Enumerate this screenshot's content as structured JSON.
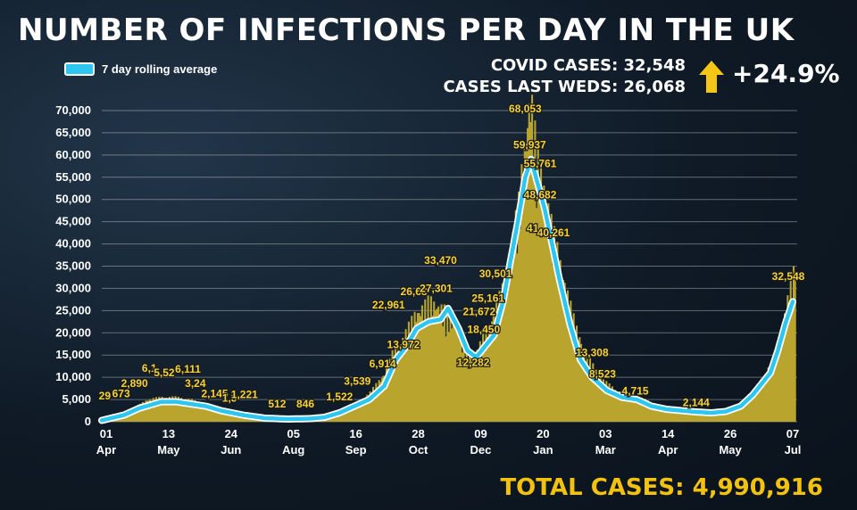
{
  "header": {
    "title": "NUMBER OF INFECTIONS PER DAY IN THE UK",
    "covid_cases": "COVID CASES: 32,548",
    "cases_last_weds": "CASES LAST WEDS: 26,068",
    "change": "+24.9%",
    "total_cases": "TOTAL CASES: 4,990,916",
    "arrow_icon": "up-arrow-icon"
  },
  "colors": {
    "bar": "#b9a52e",
    "line": "#2cc6f0",
    "line_outline": "#ffffff",
    "label": "#f3d23a",
    "arrow": "#f5c518"
  },
  "chart_data": {
    "type": "bar",
    "legend": [
      "7 day rolling average"
    ],
    "legend_position": "top-left",
    "ylim": [
      0,
      70000
    ],
    "yticks": [
      0,
      5000,
      10000,
      15000,
      20000,
      25000,
      30000,
      35000,
      40000,
      45000,
      50000,
      55000,
      60000,
      65000,
      70000
    ],
    "ytick_labels": [
      "0",
      "5,000",
      "10,000",
      "15,000",
      "20,000",
      "25,000",
      "30,000",
      "35,000",
      "40,000",
      "45,000",
      "50,000",
      "55,000",
      "60,000",
      "65,000",
      "70,000"
    ],
    "grid": true,
    "xtick_labels": [
      {
        "day": "01",
        "month": "Apr"
      },
      {
        "day": "13",
        "month": "May"
      },
      {
        "day": "24",
        "month": "Jun"
      },
      {
        "day": "05",
        "month": "Aug"
      },
      {
        "day": "16",
        "month": "Sep"
      },
      {
        "day": "28",
        "month": "Oct"
      },
      {
        "day": "09",
        "month": "Dec"
      },
      {
        "day": "20",
        "month": "Jan"
      },
      {
        "day": "03",
        "month": "Mar"
      },
      {
        "day": "14",
        "month": "Apr"
      },
      {
        "day": "26",
        "month": "May"
      },
      {
        "day": "07",
        "month": "Jul"
      }
    ],
    "xtick_index": [
      3,
      45,
      87,
      129,
      171,
      213,
      255,
      297,
      339,
      381,
      423,
      465
    ],
    "series": [
      {
        "name": "7 day rolling average",
        "type": "line",
        "points": [
          [
            0,
            300
          ],
          [
            15,
            1500
          ],
          [
            25,
            3000
          ],
          [
            40,
            4500
          ],
          [
            50,
            4500
          ],
          [
            60,
            4000
          ],
          [
            70,
            3500
          ],
          [
            80,
            2500
          ],
          [
            95,
            1500
          ],
          [
            110,
            800
          ],
          [
            125,
            600
          ],
          [
            140,
            700
          ],
          [
            150,
            1000
          ],
          [
            160,
            2000
          ],
          [
            170,
            3500
          ],
          [
            180,
            5000
          ],
          [
            190,
            8000
          ],
          [
            198,
            14000
          ],
          [
            205,
            17000
          ],
          [
            212,
            21000
          ],
          [
            220,
            22500
          ],
          [
            228,
            23000
          ],
          [
            233,
            25500
          ],
          [
            240,
            21000
          ],
          [
            246,
            16000
          ],
          [
            252,
            14500
          ],
          [
            258,
            17000
          ],
          [
            264,
            19500
          ],
          [
            270,
            27000
          ],
          [
            275,
            36000
          ],
          [
            280,
            45000
          ],
          [
            285,
            55000
          ],
          [
            289,
            59000
          ],
          [
            293,
            54000
          ],
          [
            298,
            48000
          ],
          [
            303,
            40000
          ],
          [
            308,
            32000
          ],
          [
            315,
            22000
          ],
          [
            322,
            14000
          ],
          [
            330,
            10000
          ],
          [
            340,
            7000
          ],
          [
            350,
            5500
          ],
          [
            360,
            5000
          ],
          [
            370,
            3500
          ],
          [
            380,
            2800
          ],
          [
            390,
            2500
          ],
          [
            400,
            2200
          ],
          [
            410,
            2000
          ],
          [
            420,
            2300
          ],
          [
            430,
            3500
          ],
          [
            438,
            6000
          ],
          [
            444,
            8500
          ],
          [
            450,
            11000
          ],
          [
            455,
            16000
          ],
          [
            460,
            22000
          ],
          [
            465,
            27000
          ]
        ]
      },
      {
        "name": "daily",
        "type": "bar",
        "points": [
          [
            0,
            290
          ],
          [
            10,
            1000
          ],
          [
            20,
            2500
          ],
          [
            30,
            4500
          ],
          [
            40,
            5000
          ],
          [
            50,
            5000
          ],
          [
            60,
            4500
          ],
          [
            70,
            3000
          ],
          [
            80,
            2000
          ],
          [
            90,
            1500
          ],
          [
            100,
            1000
          ],
          [
            110,
            700
          ],
          [
            120,
            600
          ],
          [
            130,
            800
          ],
          [
            140,
            1000
          ],
          [
            150,
            1500
          ],
          [
            160,
            2500
          ],
          [
            170,
            3500
          ],
          [
            180,
            6000
          ],
          [
            190,
            10000
          ],
          [
            195,
            14000
          ],
          [
            200,
            16000
          ],
          [
            210,
            22000
          ],
          [
            220,
            25000
          ],
          [
            230,
            23000
          ],
          [
            240,
            19000
          ],
          [
            245,
            15000
          ],
          [
            250,
            13000
          ],
          [
            260,
            20000
          ],
          [
            270,
            28000
          ],
          [
            280,
            45000
          ],
          [
            285,
            60000
          ],
          [
            288,
            68053
          ],
          [
            292,
            56000
          ],
          [
            297,
            49000
          ],
          [
            302,
            41000
          ],
          [
            310,
            30000
          ],
          [
            318,
            20000
          ],
          [
            325,
            14000
          ],
          [
            335,
            9000
          ],
          [
            345,
            6500
          ],
          [
            355,
            5500
          ],
          [
            365,
            4500
          ],
          [
            375,
            3000
          ],
          [
            385,
            2500
          ],
          [
            395,
            2300
          ],
          [
            405,
            2100
          ],
          [
            415,
            2000
          ],
          [
            425,
            3000
          ],
          [
            435,
            5000
          ],
          [
            445,
            9000
          ],
          [
            452,
            13000
          ],
          [
            458,
            20000
          ],
          [
            463,
            28000
          ],
          [
            466,
            32548
          ]
        ]
      }
    ],
    "data_labels": [
      {
        "i": 2,
        "v": 5000,
        "text": "29"
      },
      {
        "i": 13,
        "v": 5500,
        "text": "673"
      },
      {
        "i": 22,
        "v": 7800,
        "text": "2,890"
      },
      {
        "i": 32,
        "v": 11200,
        "text": "6,1"
      },
      {
        "i": 42,
        "v": 10200,
        "text": "5,52"
      },
      {
        "i": 58,
        "v": 11000,
        "text": "6,111"
      },
      {
        "i": 63,
        "v": 7800,
        "text": "3,24"
      },
      {
        "i": 76,
        "v": 5500,
        "text": "2,145"
      },
      {
        "i": 86,
        "v": 4500,
        "text": "1,3"
      },
      {
        "i": 96,
        "v": 5300,
        "text": "1,221"
      },
      {
        "i": 118,
        "v": 3200,
        "text": "512"
      },
      {
        "i": 137,
        "v": 3200,
        "text": "846"
      },
      {
        "i": 160,
        "v": 4800,
        "text": "1,522"
      },
      {
        "i": 172,
        "v": 8300,
        "text": "3,539"
      },
      {
        "i": 189,
        "v": 12200,
        "text": "6,914"
      },
      {
        "i": 193,
        "v": 25500,
        "text": "22,961"
      },
      {
        "i": 203,
        "v": 16500,
        "text": "13,972"
      },
      {
        "i": 210,
        "v": 28500,
        "text": "26,68"
      },
      {
        "i": 225,
        "v": 29200,
        "text": "27,301"
      },
      {
        "i": 228,
        "v": 35500,
        "text": "33,470"
      },
      {
        "i": 250,
        "v": 12500,
        "text": "12,282"
      },
      {
        "i": 257,
        "v": 20000,
        "text": "18,450"
      },
      {
        "i": 254,
        "v": 24000,
        "text": "21,672"
      },
      {
        "i": 260,
        "v": 27000,
        "text": "25,161"
      },
      {
        "i": 265,
        "v": 32500,
        "text": "30,501"
      },
      {
        "i": 285,
        "v": 69600,
        "text": "68,053"
      },
      {
        "i": 288,
        "v": 61500,
        "text": "59,937"
      },
      {
        "i": 295,
        "v": 57300,
        "text": "55,761"
      },
      {
        "i": 295,
        "v": 50200,
        "text": "48,682"
      },
      {
        "i": 290,
        "v": 42700,
        "text": "41"
      },
      {
        "i": 304,
        "v": 41700,
        "text": "40,261"
      },
      {
        "i": 330,
        "v": 14700,
        "text": "13,308"
      },
      {
        "i": 337,
        "v": 9900,
        "text": "8,523"
      },
      {
        "i": 359,
        "v": 6100,
        "text": "4,715"
      },
      {
        "i": 400,
        "v": 3500,
        "text": "2,144"
      },
      {
        "i": 462,
        "v": 31900,
        "text": "32,548"
      }
    ]
  }
}
